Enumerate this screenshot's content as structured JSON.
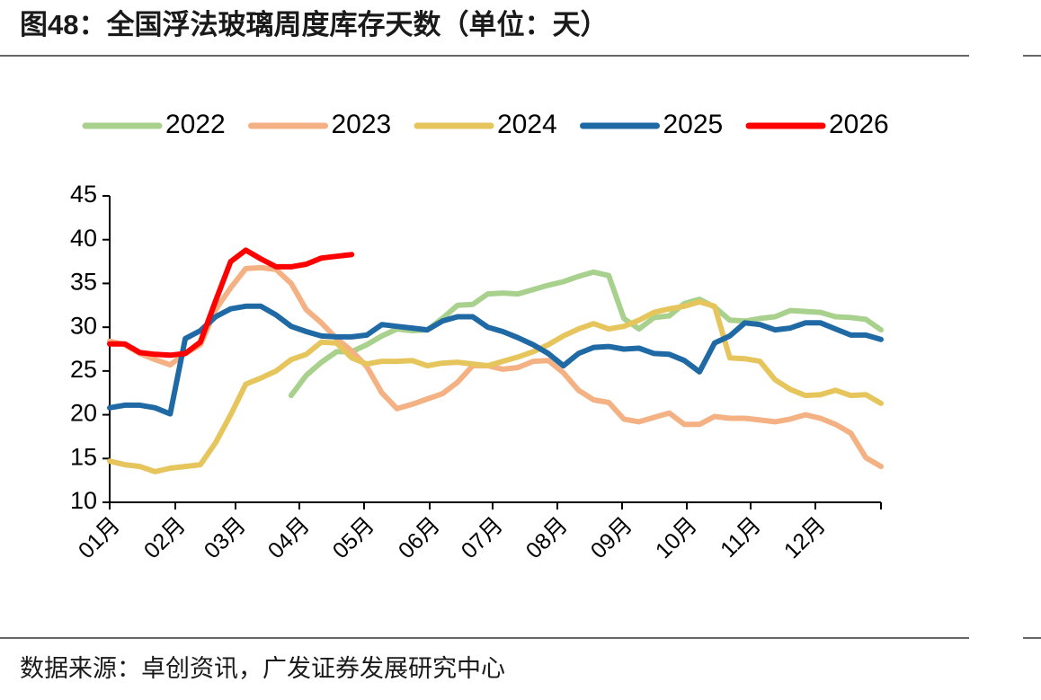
{
  "chart_data": {
    "type": "line",
    "title": "图48：全国浮法玻璃周度库存天数（单位：天）",
    "source": "数据来源：卓创资讯，广发证券发展研究中心",
    "x": [
      1,
      2,
      3,
      4,
      5,
      6,
      7,
      8,
      9,
      10,
      11,
      12,
      13,
      14,
      15,
      16,
      17,
      18,
      19,
      20,
      21,
      22,
      23,
      24,
      25,
      26,
      27,
      28,
      29,
      30,
      31,
      32,
      33,
      34,
      35,
      36,
      37,
      38,
      39,
      40,
      41,
      42,
      43,
      44,
      45,
      46,
      47,
      48,
      49,
      50,
      51,
      52
    ],
    "xlim": [
      1,
      52
    ],
    "xticks": [
      {
        "value": 1,
        "label": "01月"
      },
      {
        "value": 5.34,
        "label": "02月"
      },
      {
        "value": 9.32,
        "label": "03月"
      },
      {
        "value": 13.54,
        "label": "04月"
      },
      {
        "value": 17.82,
        "label": "05月"
      },
      {
        "value": 22.16,
        "label": "06月"
      },
      {
        "value": 26.32,
        "label": "07月"
      },
      {
        "value": 30.6,
        "label": "08月"
      },
      {
        "value": 34.88,
        "label": "09月"
      },
      {
        "value": 39.16,
        "label": "10月"
      },
      {
        "value": 43.38,
        "label": "11月"
      },
      {
        "value": 47.66,
        "label": "12月"
      }
    ],
    "ylim": [
      10,
      45
    ],
    "yticks": [
      10,
      15,
      20,
      25,
      30,
      35,
      40,
      45
    ],
    "legend": "top",
    "series": [
      {
        "name": "2022",
        "color": "#a9d18e",
        "values": [
          null,
          null,
          null,
          null,
          null,
          null,
          null,
          null,
          null,
          null,
          null,
          null,
          22.2,
          24.5,
          26,
          27.2,
          27.2,
          28,
          29,
          29.8,
          29.6,
          29.7,
          31,
          32.5,
          32.6,
          33.8,
          33.9,
          33.8,
          34.3,
          34.8,
          35.2,
          35.8,
          36.3,
          35.9,
          31,
          29.8,
          31.1,
          31.3,
          32.7,
          33.2,
          32.3,
          30.8,
          30.7,
          31,
          31.2,
          31.9,
          31.8,
          31.7,
          31.2,
          31.1,
          30.9,
          29.7
        ]
      },
      {
        "name": "2023",
        "color": "#f4b183",
        "values": [
          28.4,
          28,
          27,
          26.3,
          25.7,
          27,
          28,
          32,
          34.5,
          36.7,
          36.8,
          36.6,
          35,
          32,
          30.5,
          28.7,
          27.3,
          25.5,
          22.5,
          20.7,
          21.2,
          21.8,
          22.4,
          23.7,
          25.6,
          25.6,
          25.2,
          25.4,
          26.1,
          26.2,
          24.8,
          22.8,
          21.7,
          21.4,
          19.5,
          19.2,
          19.7,
          20.2,
          18.9,
          18.9,
          19.8,
          19.6,
          19.6,
          19.4,
          19.2,
          19.5,
          20,
          19.6,
          18.9,
          17.9,
          15.1,
          14.1
        ]
      },
      {
        "name": "2024",
        "color": "#e6c65c",
        "values": [
          14.7,
          14.3,
          14.1,
          13.5,
          13.9,
          14.1,
          14.3,
          16.8,
          20,
          23.5,
          24.2,
          25,
          26.3,
          26.9,
          28.3,
          28.2,
          26.5,
          25.8,
          26.1,
          26.1,
          26.2,
          25.6,
          25.9,
          26,
          25.8,
          25.6,
          26.1,
          26.6,
          27.2,
          28,
          29,
          29.8,
          30.4,
          29.8,
          30.1,
          30.8,
          31.7,
          32.1,
          32.4,
          32.9,
          32.4,
          26.5,
          26.4,
          26.1,
          24,
          22.9,
          22.2,
          22.3,
          22.8,
          22.2,
          22.3,
          21.3
        ]
      },
      {
        "name": "2025",
        "color": "#1f6aa5",
        "values": [
          20.8,
          21.1,
          21.1,
          20.8,
          20.1,
          28.7,
          29.6,
          31.2,
          32.1,
          32.4,
          32.4,
          31.4,
          30.1,
          29.5,
          29,
          28.9,
          28.9,
          29.1,
          30.3,
          30.1,
          29.9,
          29.7,
          30.7,
          31.2,
          31.2,
          30,
          29.5,
          28.8,
          28,
          27,
          25.6,
          27,
          27.7,
          27.8,
          27.5,
          27.6,
          27,
          26.9,
          26.2,
          24.9,
          28.2,
          29,
          30.5,
          30.3,
          29.7,
          29.9,
          30.5,
          30.5,
          29.8,
          29.1,
          29.1,
          28.6
        ]
      },
      {
        "name": "2026",
        "color": "#ff0000",
        "values": [
          28.1,
          28.1,
          27.1,
          26.9,
          26.8,
          27,
          28.3,
          33,
          37.5,
          38.8,
          37.8,
          36.9,
          36.9,
          37.2,
          37.9,
          38.1,
          38.3,
          null,
          null,
          null,
          null,
          null,
          null,
          null,
          null,
          null,
          null,
          null,
          null,
          null,
          null,
          null,
          null,
          null,
          null,
          null,
          null,
          null,
          null,
          null,
          null,
          null,
          null,
          null,
          null,
          null,
          null,
          null,
          null,
          null,
          null,
          null
        ]
      }
    ]
  }
}
